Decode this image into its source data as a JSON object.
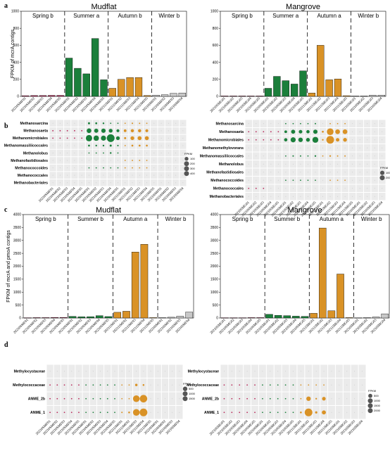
{
  "colors": {
    "spring": "#b8285a",
    "summer": "#1b7f3b",
    "autumn": "#d99226",
    "winter": "#c8c8c8",
    "empty": "#c9c9c9"
  },
  "panel_labels": [
    "a",
    "b",
    "c",
    "d"
  ],
  "chart_data": [
    {
      "id": "a-mudflat",
      "type": "bar",
      "title": "Mudflat",
      "ylabel": "FPKM of mcrA contigs",
      "ylim": [
        0,
        1000
      ],
      "yticks": [
        "0",
        "200",
        "400",
        "600",
        "800",
        "1000"
      ],
      "groups": [
        {
          "label": "Spring b",
          "count": 5
        },
        {
          "label": "Summer a",
          "count": 5
        },
        {
          "label": "Autumn b",
          "count": 5
        },
        {
          "label": "Winter b",
          "count": 4
        }
      ],
      "categories": [
        "20210SMF01",
        "20210SMF02",
        "20210SMF03",
        "20210SMF04",
        "20210SMF05",
        "20210SMF01",
        "20210SMF02",
        "20210SMF03",
        "20210SMF04",
        "20210SMF05",
        "20211IMF01",
        "20211IMF02",
        "20211IMF03",
        "20211IMF04",
        "20211IMF05",
        "20210IMF01",
        "20210IMF02",
        "20210IMF03",
        "20210IMF04"
      ],
      "values": [
        8,
        10,
        10,
        12,
        12,
        450,
        330,
        265,
        680,
        195,
        95,
        200,
        222,
        222,
        10,
        15,
        20,
        35,
        40
      ]
    },
    {
      "id": "a-mangrove",
      "type": "bar",
      "title": "Mangrove",
      "ylim": [
        0,
        1000
      ],
      "yticks": [
        "0",
        "200",
        "400",
        "600",
        "800",
        "1000"
      ],
      "groups": [
        {
          "label": "Spring b",
          "count": 5
        },
        {
          "label": "Summer a",
          "count": 5
        },
        {
          "label": "Autumn a",
          "count": 5
        },
        {
          "label": "Winter b",
          "count": 4
        }
      ],
      "categories": [
        "20210SMG01",
        "20210SMG02",
        "20210SMG03",
        "20210SMG04",
        "20210SMG05",
        "20210SMG01",
        "20210SMG02",
        "20210SMG03",
        "20210SMG04",
        "20210SMG05",
        "20211IMG01",
        "20211IMG02",
        "20211IMG03",
        "20211IMG04",
        "20211IMG05",
        "20210IMG01",
        "20210IMG02",
        "20210IMG03",
        "20210IMG04"
      ],
      "values": [
        5,
        5,
        5,
        5,
        5,
        95,
        235,
        185,
        145,
        300,
        40,
        600,
        195,
        205,
        8,
        5,
        5,
        15,
        15
      ]
    },
    {
      "id": "b-mudflat",
      "type": "scatter",
      "subtype": "bubble",
      "rows": [
        "Methanosarcina",
        "Methanosaeta",
        "Methanomicrobiales",
        "Methanomassiliicoccales",
        "Methanolobus",
        "Methanofastidiosales",
        "Methanococcoides",
        "Methanococcales",
        "Methanobacteriales"
      ],
      "ncols": 19,
      "legend": {
        "title": "FPKM",
        "values": [
          "100",
          "200",
          "300",
          "400"
        ]
      },
      "values": [
        [
          0,
          0,
          0,
          0,
          0,
          30,
          25,
          20,
          10,
          5,
          10,
          15,
          12,
          10,
          0,
          0,
          0,
          0,
          0
        ],
        [
          3,
          3,
          3,
          3,
          3,
          150,
          120,
          130,
          100,
          60,
          50,
          70,
          70,
          60,
          0,
          0,
          0,
          0,
          0
        ],
        [
          2,
          2,
          2,
          2,
          2,
          280,
          200,
          180,
          420,
          100,
          30,
          100,
          110,
          110,
          0,
          0,
          0,
          0,
          0
        ],
        [
          0,
          0,
          0,
          0,
          0,
          25,
          20,
          20,
          30,
          15,
          10,
          25,
          25,
          25,
          0,
          0,
          0,
          0,
          0
        ],
        [
          0,
          0,
          0,
          0,
          0,
          10,
          8,
          8,
          20,
          10,
          0,
          0,
          0,
          0,
          0,
          0,
          0,
          0,
          0
        ],
        [
          0,
          0,
          0,
          0,
          0,
          0,
          0,
          0,
          0,
          0,
          10,
          12,
          12,
          10,
          0,
          0,
          0,
          0,
          0
        ],
        [
          0,
          0,
          0,
          0,
          0,
          6,
          5,
          5,
          8,
          4,
          5,
          5,
          5,
          5,
          0,
          0,
          0,
          0,
          0
        ],
        [
          0,
          0,
          0,
          0,
          0,
          0,
          0,
          0,
          0,
          0,
          0,
          0,
          0,
          0,
          0,
          0,
          0,
          0,
          0
        ],
        [
          0,
          0,
          0,
          0,
          0,
          0,
          0,
          0,
          0,
          0,
          0,
          0,
          0,
          0,
          0,
          0,
          0,
          0,
          0
        ]
      ]
    },
    {
      "id": "b-mangrove",
      "type": "scatter",
      "subtype": "bubble",
      "rows": [
        "Methanosarcina",
        "Methanosaeta",
        "Methanomicrobiales",
        "Methanomethylovorans",
        "Methanomassiliicoccales",
        "Methanolobus",
        "Methanofastidiosales",
        "Methanococcoides",
        "Methanococcales",
        "Methanobacteriales"
      ],
      "ncols": 19,
      "legend": {
        "title": "FPKM",
        "values": [
          "100",
          "200"
        ]
      },
      "values": [
        [
          0,
          0,
          0,
          0,
          0,
          5,
          8,
          6,
          6,
          10,
          0,
          8,
          8,
          6,
          0,
          0,
          0,
          0,
          0
        ],
        [
          2,
          2,
          2,
          2,
          2,
          40,
          90,
          70,
          60,
          100,
          20,
          250,
          120,
          120,
          0,
          0,
          0,
          0,
          0
        ],
        [
          2,
          2,
          2,
          2,
          2,
          60,
          140,
          110,
          80,
          190,
          15,
          330,
          70,
          80,
          0,
          0,
          0,
          0,
          0
        ],
        [
          0,
          0,
          0,
          0,
          0,
          0,
          0,
          0,
          0,
          0,
          0,
          0,
          0,
          0,
          0,
          0,
          0,
          0,
          0
        ],
        [
          0,
          0,
          0,
          0,
          0,
          8,
          12,
          10,
          8,
          15,
          5,
          15,
          10,
          10,
          0,
          0,
          0,
          0,
          0
        ],
        [
          0,
          0,
          0,
          0,
          0,
          0,
          0,
          0,
          0,
          0,
          0,
          0,
          0,
          0,
          0,
          0,
          0,
          0,
          0
        ],
        [
          0,
          0,
          0,
          0,
          0,
          0,
          0,
          0,
          0,
          0,
          0,
          0,
          0,
          0,
          0,
          0,
          0,
          0,
          0
        ],
        [
          0,
          0,
          0,
          0,
          0,
          3,
          3,
          3,
          3,
          3,
          0,
          5,
          4,
          4,
          0,
          0,
          0,
          0,
          0
        ],
        [
          2,
          2,
          2,
          0,
          0,
          0,
          0,
          0,
          0,
          0,
          0,
          0,
          0,
          0,
          0,
          0,
          0,
          0,
          0
        ],
        [
          0,
          0,
          0,
          0,
          0,
          0,
          0,
          0,
          0,
          0,
          0,
          0,
          0,
          0,
          0,
          0,
          0,
          0,
          0
        ]
      ]
    },
    {
      "id": "c-mudflat",
      "type": "bar",
      "title": "Mudflat",
      "ylabel": "FPKM of mcrA and pmoA contigs",
      "ylim": [
        0,
        4000
      ],
      "yticks": [
        "0",
        "500",
        "1000",
        "1500",
        "2000",
        "2500",
        "3000",
        "3500",
        "4000"
      ],
      "groups": [
        {
          "label": "Spring b",
          "count": 5
        },
        {
          "label": "Summer b",
          "count": 5
        },
        {
          "label": "Autumn a",
          "count": 5
        },
        {
          "label": "Winter b",
          "count": 4
        }
      ],
      "categories": [
        "20210SMF01",
        "20210SMF02",
        "20210SMF03",
        "20210SMF04",
        "20210SMF05",
        "20210SMF01",
        "20210SMF02",
        "20210SMF03",
        "20210SMF04",
        "20210SMF05",
        "20211IMF01",
        "20211IMF02",
        "20211IMF03",
        "20211IMF04",
        "20211IMF05",
        "20210IMF01",
        "20210IMF02",
        "20210IMF03",
        "20210IMF04"
      ],
      "values": [
        10,
        15,
        15,
        20,
        20,
        60,
        45,
        50,
        90,
        55,
        220,
        260,
        2550,
        2850,
        15,
        15,
        30,
        70,
        230
      ]
    },
    {
      "id": "c-mangrove",
      "type": "bar",
      "title": "Mangrove",
      "ylim": [
        0,
        4000
      ],
      "yticks": [
        "0",
        "500",
        "1000",
        "1500",
        "2000",
        "2500",
        "3000",
        "3500",
        "4000"
      ],
      "groups": [
        {
          "label": "Spring b",
          "count": 5
        },
        {
          "label": "Summer b",
          "count": 5
        },
        {
          "label": "Autumn a",
          "count": 5
        },
        {
          "label": "Winter b",
          "count": 4
        }
      ],
      "categories": [
        "20210SMG01",
        "20210SMG02",
        "20210SMG03",
        "20210SMG04",
        "20210SMG05",
        "20210SMG01",
        "20210SMG02",
        "20210SMG03",
        "20210SMG04",
        "20210SMG05",
        "20211IMG01",
        "20211IMG02",
        "20211IMG03",
        "20211IMG04",
        "20211IMG05",
        "20210IMG01",
        "20210IMG02",
        "20210IMG03",
        "20210IMG04"
      ],
      "values": [
        10,
        10,
        10,
        15,
        15,
        140,
        100,
        90,
        70,
        60,
        180,
        3480,
        280,
        1700,
        15,
        10,
        15,
        40,
        160
      ]
    },
    {
      "id": "d-mudflat",
      "type": "scatter",
      "subtype": "bubble",
      "rows": [
        "Methylocystaceae",
        "Methylococcaceae",
        "ANME_2b",
        "ANME_1"
      ],
      "ncols": 19,
      "legend": {
        "title": "FPKM",
        "values": [
          "500",
          "1000",
          "1500"
        ]
      },
      "values": [
        [
          0,
          0,
          0,
          0,
          0,
          0,
          0,
          0,
          0,
          0,
          0,
          0,
          0,
          0,
          0,
          0,
          0,
          0,
          0
        ],
        [
          2,
          2,
          2,
          2,
          2,
          3,
          3,
          3,
          3,
          3,
          20,
          20,
          150,
          80,
          0,
          0,
          0,
          0,
          0
        ],
        [
          2,
          2,
          2,
          2,
          2,
          3,
          3,
          3,
          3,
          3,
          20,
          30,
          1100,
          1400,
          0,
          0,
          0,
          0,
          0
        ],
        [
          2,
          2,
          2,
          2,
          2,
          8,
          8,
          8,
          20,
          10,
          50,
          80,
          1100,
          1500,
          0,
          0,
          0,
          0,
          0
        ]
      ]
    },
    {
      "id": "d-mangrove",
      "type": "scatter",
      "subtype": "bubble",
      "rows": [
        "Methylocystaceae",
        "Methylococcaceae",
        "ANME_2b",
        "ANME_1"
      ],
      "ncols": 19,
      "legend": {
        "title": "FPKM",
        "values": [
          "500",
          "1000",
          "1500",
          "2000"
        ]
      },
      "values": [
        [
          0,
          0,
          0,
          0,
          0,
          0,
          0,
          0,
          0,
          0,
          0,
          0,
          0,
          0,
          0,
          0,
          0,
          0,
          0
        ],
        [
          2,
          2,
          2,
          2,
          2,
          3,
          3,
          3,
          3,
          3,
          10,
          25,
          10,
          20,
          0,
          0,
          0,
          0,
          0
        ],
        [
          2,
          2,
          2,
          2,
          2,
          10,
          8,
          8,
          6,
          6,
          30,
          600,
          80,
          400,
          0,
          0,
          0,
          0,
          0
        ],
        [
          2,
          2,
          2,
          2,
          2,
          20,
          15,
          15,
          10,
          10,
          100,
          1800,
          150,
          500,
          0,
          0,
          0,
          0,
          0
        ]
      ]
    }
  ]
}
